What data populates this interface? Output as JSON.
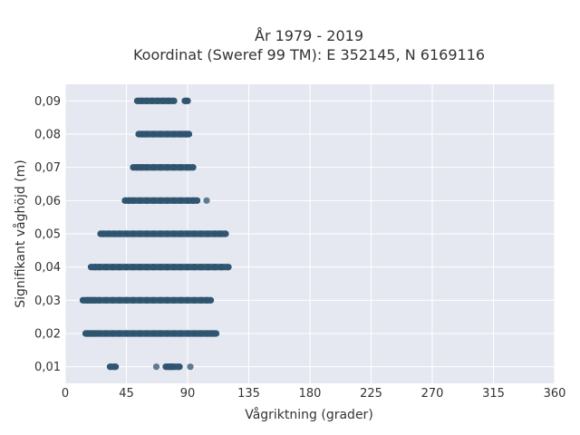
{
  "chart_data": {
    "type": "scatter",
    "title_line1": "År 1979 - 2019",
    "title_line2": "Koordinat (Sweref 99 TM): E 352145, N 6169116",
    "xlabel": "Vågriktning (grader)",
    "ylabel": "Signifikant våghöjd (m)",
    "xlim": [
      0,
      360
    ],
    "ylim": [
      0.005,
      0.095
    ],
    "x_ticks": [
      0,
      45,
      90,
      135,
      180,
      225,
      270,
      315,
      360
    ],
    "x_tick_labels": [
      "0",
      "45",
      "90",
      "135",
      "180",
      "225",
      "270",
      "315",
      "360"
    ],
    "y_ticks": [
      0.01,
      0.02,
      0.03,
      0.04,
      0.05,
      0.06,
      0.07,
      0.08,
      0.09
    ],
    "y_tick_labels": [
      "0,01",
      "0,02",
      "0,03",
      "0,04",
      "0,05",
      "0,06",
      "0,07",
      "0,08",
      "0,09"
    ],
    "grid": true,
    "background_color": "#e5e8f0",
    "marker_color": "#2e5470",
    "series": [
      {
        "values": [
          [
            33,
            0.01
          ],
          [
            37,
            0.01
          ],
          [
            67,
            0.01
          ],
          [
            74,
            0.01
          ],
          [
            76,
            0.01
          ],
          [
            78,
            0.01
          ],
          [
            79,
            0.01
          ],
          [
            84,
            0.01
          ],
          [
            92,
            0.01
          ],
          [
            15,
            0.02
          ],
          [
            16,
            0.02
          ],
          [
            18,
            0.02
          ],
          [
            20,
            0.02
          ],
          [
            22,
            0.02
          ],
          [
            25,
            0.02
          ],
          [
            30,
            0.02
          ],
          [
            35,
            0.02
          ],
          [
            40,
            0.02
          ],
          [
            45,
            0.02
          ],
          [
            50,
            0.02
          ],
          [
            55,
            0.02
          ],
          [
            60,
            0.02
          ],
          [
            65,
            0.02
          ],
          [
            70,
            0.02
          ],
          [
            75,
            0.02
          ],
          [
            80,
            0.02
          ],
          [
            85,
            0.02
          ],
          [
            90,
            0.02
          ],
          [
            95,
            0.02
          ],
          [
            100,
            0.02
          ],
          [
            104,
            0.02
          ],
          [
            108,
            0.02
          ],
          [
            111,
            0.02
          ],
          [
            13,
            0.03
          ],
          [
            16,
            0.03
          ],
          [
            18,
            0.03
          ],
          [
            20,
            0.03
          ],
          [
            22,
            0.03
          ],
          [
            25,
            0.03
          ],
          [
            30,
            0.03
          ],
          [
            35,
            0.03
          ],
          [
            40,
            0.03
          ],
          [
            45,
            0.03
          ],
          [
            50,
            0.03
          ],
          [
            55,
            0.03
          ],
          [
            60,
            0.03
          ],
          [
            65,
            0.03
          ],
          [
            70,
            0.03
          ],
          [
            75,
            0.03
          ],
          [
            80,
            0.03
          ],
          [
            85,
            0.03
          ],
          [
            90,
            0.03
          ],
          [
            95,
            0.03
          ],
          [
            100,
            0.03
          ],
          [
            104,
            0.03
          ],
          [
            107,
            0.03
          ],
          [
            19,
            0.04
          ],
          [
            22,
            0.04
          ],
          [
            25,
            0.04
          ],
          [
            30,
            0.04
          ],
          [
            35,
            0.04
          ],
          [
            40,
            0.04
          ],
          [
            45,
            0.04
          ],
          [
            50,
            0.04
          ],
          [
            55,
            0.04
          ],
          [
            60,
            0.04
          ],
          [
            65,
            0.04
          ],
          [
            70,
            0.04
          ],
          [
            75,
            0.04
          ],
          [
            80,
            0.04
          ],
          [
            85,
            0.04
          ],
          [
            90,
            0.04
          ],
          [
            95,
            0.04
          ],
          [
            100,
            0.04
          ],
          [
            105,
            0.04
          ],
          [
            110,
            0.04
          ],
          [
            115,
            0.04
          ],
          [
            120,
            0.04
          ],
          [
            26,
            0.05
          ],
          [
            28,
            0.05
          ],
          [
            32,
            0.05
          ],
          [
            36,
            0.05
          ],
          [
            40,
            0.05
          ],
          [
            45,
            0.05
          ],
          [
            50,
            0.05
          ],
          [
            55,
            0.05
          ],
          [
            60,
            0.05
          ],
          [
            65,
            0.05
          ],
          [
            70,
            0.05
          ],
          [
            75,
            0.05
          ],
          [
            80,
            0.05
          ],
          [
            85,
            0.05
          ],
          [
            90,
            0.05
          ],
          [
            95,
            0.05
          ],
          [
            100,
            0.05
          ],
          [
            105,
            0.05
          ],
          [
            110,
            0.05
          ],
          [
            114,
            0.05
          ],
          [
            118,
            0.05
          ],
          [
            44,
            0.06
          ],
          [
            47,
            0.06
          ],
          [
            50,
            0.06
          ],
          [
            55,
            0.06
          ],
          [
            60,
            0.06
          ],
          [
            65,
            0.06
          ],
          [
            70,
            0.06
          ],
          [
            75,
            0.06
          ],
          [
            80,
            0.06
          ],
          [
            85,
            0.06
          ],
          [
            90,
            0.06
          ],
          [
            94,
            0.06
          ],
          [
            97,
            0.06
          ],
          [
            104,
            0.06
          ],
          [
            50,
            0.07
          ],
          [
            53,
            0.07
          ],
          [
            56,
            0.07
          ],
          [
            60,
            0.07
          ],
          [
            65,
            0.07
          ],
          [
            70,
            0.07
          ],
          [
            75,
            0.07
          ],
          [
            80,
            0.07
          ],
          [
            85,
            0.07
          ],
          [
            90,
            0.07
          ],
          [
            94,
            0.07
          ],
          [
            54,
            0.08
          ],
          [
            57,
            0.08
          ],
          [
            60,
            0.08
          ],
          [
            65,
            0.08
          ],
          [
            70,
            0.08
          ],
          [
            75,
            0.08
          ],
          [
            80,
            0.08
          ],
          [
            85,
            0.08
          ],
          [
            89,
            0.08
          ],
          [
            91,
            0.08
          ],
          [
            53,
            0.09
          ],
          [
            56,
            0.09
          ],
          [
            60,
            0.09
          ],
          [
            64,
            0.09
          ],
          [
            68,
            0.09
          ],
          [
            72,
            0.09
          ],
          [
            76,
            0.09
          ],
          [
            80,
            0.09
          ],
          [
            88,
            0.09
          ],
          [
            90,
            0.09
          ]
        ]
      }
    ]
  }
}
